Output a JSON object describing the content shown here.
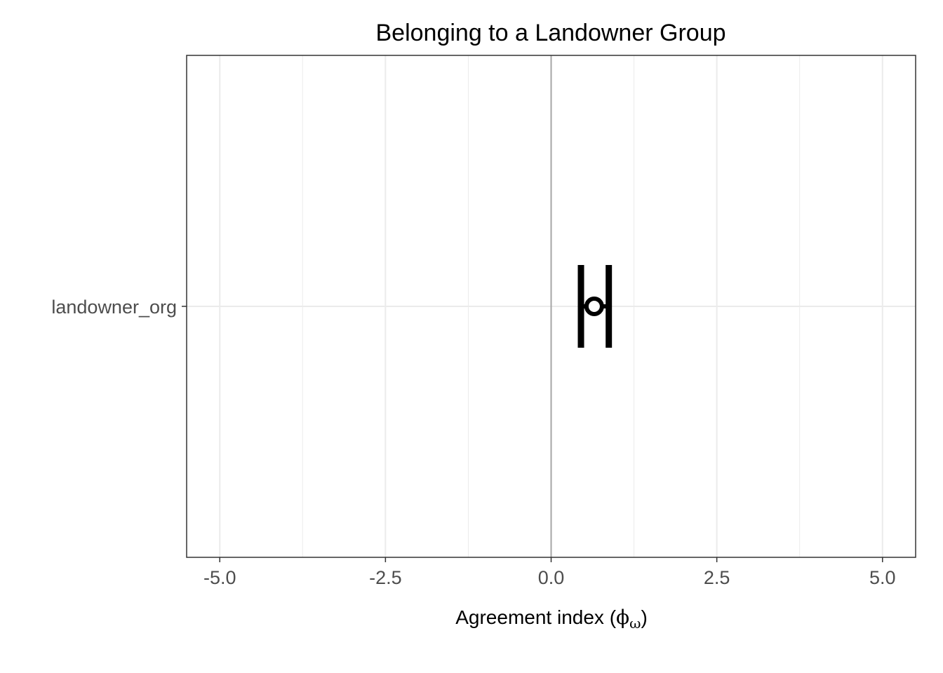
{
  "chart_data": {
    "type": "errorbar",
    "title": "Belonging to a Landowner Group",
    "xlabel": {
      "prefix": "Agreement index (",
      "symbol": "ϕ",
      "subscript": "ω",
      "suffix": ")"
    },
    "ylabel": "",
    "xlim": [
      -5.5,
      5.5
    ],
    "x_ticks": [
      -5.0,
      -2.5,
      0.0,
      2.5,
      5.0
    ],
    "x_tick_labels": [
      "-5.0",
      "-2.5",
      "0.0",
      "2.5",
      "5.0"
    ],
    "x_minor_ticks": [
      -3.75,
      -1.25,
      1.25,
      3.75
    ],
    "categories": [
      "landowner_org"
    ],
    "points": [
      {
        "category": "landowner_org",
        "estimate": 0.65,
        "lower": 0.45,
        "upper": 0.87
      }
    ],
    "reference_line": 0.0,
    "grid": true,
    "legend": "none",
    "colors": {
      "point": "#000000",
      "grid": "#ebebeb",
      "reference": "#a6a6a6",
      "panel_border": "#333333",
      "tick_text": "#4d4d4d"
    }
  }
}
